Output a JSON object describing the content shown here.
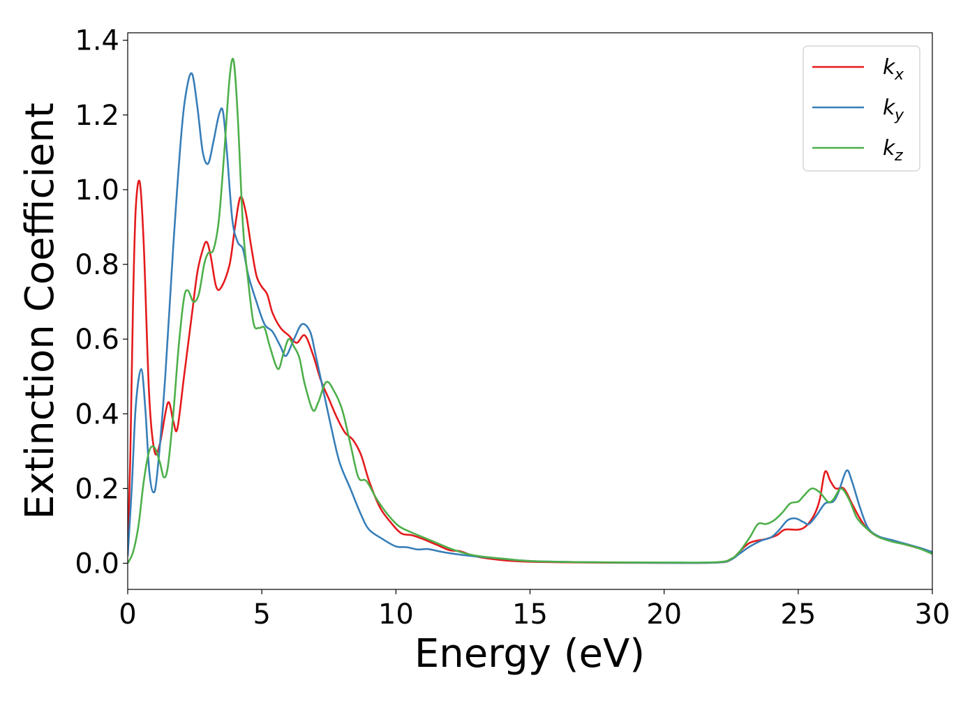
{
  "chart_data": {
    "type": "line",
    "xlabel": "Energy (eV)",
    "ylabel": "Extinction Coefficient",
    "xlim": [
      0,
      30
    ],
    "ylim": [
      -0.07,
      1.42
    ],
    "xticks": [
      0,
      5,
      10,
      15,
      20,
      25,
      30
    ],
    "xtick_labels": [
      "0",
      "5",
      "10",
      "15",
      "20",
      "25",
      "30"
    ],
    "yticks": [
      0.0,
      0.2,
      0.4,
      0.6,
      0.8,
      1.0,
      1.2,
      1.4
    ],
    "ytick_labels": [
      "0.0",
      "0.2",
      "0.4",
      "0.6",
      "0.8",
      "1.0",
      "1.2",
      "1.4"
    ],
    "grid": false,
    "legend_position": "top-right",
    "series": [
      {
        "name": "k_x",
        "label_base": "k",
        "label_sub": "x",
        "color": "#e41a1c",
        "points": [
          [
            0,
            0.02
          ],
          [
            0.1,
            0.3
          ],
          [
            0.2,
            0.7
          ],
          [
            0.3,
            0.95
          ],
          [
            0.45,
            1.02
          ],
          [
            0.6,
            0.85
          ],
          [
            0.8,
            0.45
          ],
          [
            1.0,
            0.3
          ],
          [
            1.2,
            0.32
          ],
          [
            1.5,
            0.43
          ],
          [
            1.7,
            0.38
          ],
          [
            1.85,
            0.36
          ],
          [
            2.1,
            0.5
          ],
          [
            2.4,
            0.67
          ],
          [
            2.6,
            0.78
          ],
          [
            2.8,
            0.84
          ],
          [
            2.95,
            0.86
          ],
          [
            3.1,
            0.82
          ],
          [
            3.3,
            0.74
          ],
          [
            3.5,
            0.74
          ],
          [
            3.8,
            0.8
          ],
          [
            4.0,
            0.9
          ],
          [
            4.2,
            0.98
          ],
          [
            4.4,
            0.94
          ],
          [
            4.6,
            0.85
          ],
          [
            4.8,
            0.77
          ],
          [
            5.0,
            0.74
          ],
          [
            5.2,
            0.72
          ],
          [
            5.4,
            0.67
          ],
          [
            5.7,
            0.63
          ],
          [
            6.0,
            0.61
          ],
          [
            6.3,
            0.59
          ],
          [
            6.6,
            0.61
          ],
          [
            6.9,
            0.56
          ],
          [
            7.2,
            0.49
          ],
          [
            7.5,
            0.44
          ],
          [
            7.8,
            0.39
          ],
          [
            8.1,
            0.35
          ],
          [
            8.4,
            0.33
          ],
          [
            8.7,
            0.29
          ],
          [
            9.0,
            0.22
          ],
          [
            9.4,
            0.15
          ],
          [
            9.8,
            0.11
          ],
          [
            10.2,
            0.08
          ],
          [
            10.6,
            0.075
          ],
          [
            11.0,
            0.065
          ],
          [
            11.5,
            0.05
          ],
          [
            12.0,
            0.035
          ],
          [
            12.4,
            0.032
          ],
          [
            13.0,
            0.018
          ],
          [
            14.0,
            0.008
          ],
          [
            15.0,
            0.004
          ],
          [
            17.0,
            0.002
          ],
          [
            20.0,
            0.001
          ],
          [
            22.0,
            0.002
          ],
          [
            22.5,
            0.01
          ],
          [
            22.8,
            0.03
          ],
          [
            23.2,
            0.055
          ],
          [
            23.8,
            0.065
          ],
          [
            24.2,
            0.075
          ],
          [
            24.5,
            0.09
          ],
          [
            25.0,
            0.09
          ],
          [
            25.3,
            0.1
          ],
          [
            25.6,
            0.13
          ],
          [
            25.8,
            0.17
          ],
          [
            26.0,
            0.245
          ],
          [
            26.2,
            0.22
          ],
          [
            26.4,
            0.2
          ],
          [
            26.7,
            0.2
          ],
          [
            27.0,
            0.16
          ],
          [
            27.3,
            0.12
          ],
          [
            27.6,
            0.09
          ],
          [
            28.0,
            0.07
          ],
          [
            28.5,
            0.06
          ],
          [
            29.0,
            0.05
          ],
          [
            29.5,
            0.04
          ],
          [
            30.0,
            0.03
          ]
        ]
      },
      {
        "name": "k_y",
        "label_base": "k",
        "label_sub": "y",
        "color": "#377eb8",
        "points": [
          [
            0,
            0.02
          ],
          [
            0.15,
            0.2
          ],
          [
            0.3,
            0.42
          ],
          [
            0.5,
            0.52
          ],
          [
            0.65,
            0.42
          ],
          [
            0.8,
            0.25
          ],
          [
            0.95,
            0.19
          ],
          [
            1.1,
            0.24
          ],
          [
            1.4,
            0.5
          ],
          [
            1.7,
            0.85
          ],
          [
            2.0,
            1.15
          ],
          [
            2.2,
            1.27
          ],
          [
            2.4,
            1.31
          ],
          [
            2.6,
            1.22
          ],
          [
            2.8,
            1.1
          ],
          [
            3.0,
            1.07
          ],
          [
            3.2,
            1.13
          ],
          [
            3.4,
            1.2
          ],
          [
            3.55,
            1.21
          ],
          [
            3.7,
            1.1
          ],
          [
            3.9,
            0.92
          ],
          [
            4.1,
            0.86
          ],
          [
            4.3,
            0.84
          ],
          [
            4.5,
            0.77
          ],
          [
            4.8,
            0.7
          ],
          [
            5.1,
            0.64
          ],
          [
            5.4,
            0.62
          ],
          [
            5.7,
            0.58
          ],
          [
            5.9,
            0.555
          ],
          [
            6.2,
            0.6
          ],
          [
            6.5,
            0.64
          ],
          [
            6.8,
            0.62
          ],
          [
            7.0,
            0.56
          ],
          [
            7.3,
            0.46
          ],
          [
            7.6,
            0.36
          ],
          [
            7.9,
            0.27
          ],
          [
            8.3,
            0.2
          ],
          [
            8.7,
            0.13
          ],
          [
            9.0,
            0.09
          ],
          [
            9.5,
            0.065
          ],
          [
            10.0,
            0.045
          ],
          [
            10.4,
            0.043
          ],
          [
            10.8,
            0.037
          ],
          [
            11.2,
            0.038
          ],
          [
            11.6,
            0.032
          ],
          [
            12.0,
            0.027
          ],
          [
            12.5,
            0.022
          ],
          [
            13.0,
            0.018
          ],
          [
            14.0,
            0.012
          ],
          [
            15.0,
            0.006
          ],
          [
            17.0,
            0.003
          ],
          [
            20.0,
            0.001
          ],
          [
            22.0,
            0.002
          ],
          [
            22.5,
            0.01
          ],
          [
            22.8,
            0.025
          ],
          [
            23.2,
            0.045
          ],
          [
            23.6,
            0.06
          ],
          [
            24.0,
            0.07
          ],
          [
            24.3,
            0.09
          ],
          [
            24.6,
            0.115
          ],
          [
            24.9,
            0.12
          ],
          [
            25.2,
            0.11
          ],
          [
            25.4,
            0.105
          ],
          [
            25.7,
            0.13
          ],
          [
            26.0,
            0.16
          ],
          [
            26.3,
            0.165
          ],
          [
            26.5,
            0.19
          ],
          [
            26.8,
            0.248
          ],
          [
            27.0,
            0.22
          ],
          [
            27.3,
            0.15
          ],
          [
            27.6,
            0.095
          ],
          [
            28.0,
            0.072
          ],
          [
            28.5,
            0.062
          ],
          [
            29.0,
            0.052
          ],
          [
            29.5,
            0.042
          ],
          [
            30.0,
            0.03
          ]
        ]
      },
      {
        "name": "k_z",
        "label_base": "k",
        "label_sub": "z",
        "color": "#4daf4a",
        "points": [
          [
            0,
            0.0
          ],
          [
            0.2,
            0.03
          ],
          [
            0.4,
            0.1
          ],
          [
            0.6,
            0.22
          ],
          [
            0.8,
            0.3
          ],
          [
            1.0,
            0.31
          ],
          [
            1.2,
            0.27
          ],
          [
            1.35,
            0.23
          ],
          [
            1.5,
            0.26
          ],
          [
            1.7,
            0.4
          ],
          [
            1.9,
            0.58
          ],
          [
            2.1,
            0.71
          ],
          [
            2.25,
            0.73
          ],
          [
            2.45,
            0.7
          ],
          [
            2.65,
            0.72
          ],
          [
            2.85,
            0.8
          ],
          [
            3.0,
            0.83
          ],
          [
            3.2,
            0.84
          ],
          [
            3.4,
            0.92
          ],
          [
            3.6,
            1.1
          ],
          [
            3.8,
            1.3
          ],
          [
            3.95,
            1.345
          ],
          [
            4.1,
            1.2
          ],
          [
            4.3,
            0.9
          ],
          [
            4.5,
            0.75
          ],
          [
            4.7,
            0.64
          ],
          [
            4.9,
            0.63
          ],
          [
            5.1,
            0.63
          ],
          [
            5.3,
            0.58
          ],
          [
            5.6,
            0.52
          ],
          [
            5.8,
            0.56
          ],
          [
            6.0,
            0.6
          ],
          [
            6.2,
            0.58
          ],
          [
            6.4,
            0.55
          ],
          [
            6.6,
            0.48
          ],
          [
            6.9,
            0.41
          ],
          [
            7.1,
            0.43
          ],
          [
            7.4,
            0.485
          ],
          [
            7.7,
            0.46
          ],
          [
            8.0,
            0.41
          ],
          [
            8.3,
            0.32
          ],
          [
            8.6,
            0.23
          ],
          [
            8.9,
            0.22
          ],
          [
            9.3,
            0.17
          ],
          [
            9.7,
            0.13
          ],
          [
            10.1,
            0.1
          ],
          [
            10.5,
            0.085
          ],
          [
            11.0,
            0.07
          ],
          [
            11.5,
            0.055
          ],
          [
            12.0,
            0.04
          ],
          [
            12.5,
            0.028
          ],
          [
            13.0,
            0.02
          ],
          [
            14.0,
            0.012
          ],
          [
            15.0,
            0.006
          ],
          [
            17.0,
            0.003
          ],
          [
            20.0,
            0.002
          ],
          [
            22.0,
            0.003
          ],
          [
            22.5,
            0.012
          ],
          [
            22.8,
            0.03
          ],
          [
            23.2,
            0.07
          ],
          [
            23.5,
            0.105
          ],
          [
            23.8,
            0.105
          ],
          [
            24.1,
            0.115
          ],
          [
            24.4,
            0.135
          ],
          [
            24.7,
            0.16
          ],
          [
            25.0,
            0.165
          ],
          [
            25.2,
            0.18
          ],
          [
            25.5,
            0.2
          ],
          [
            25.8,
            0.19
          ],
          [
            26.1,
            0.165
          ],
          [
            26.3,
            0.17
          ],
          [
            26.6,
            0.2
          ],
          [
            26.9,
            0.17
          ],
          [
            27.2,
            0.12
          ],
          [
            27.6,
            0.09
          ],
          [
            28.0,
            0.07
          ],
          [
            28.5,
            0.058
          ],
          [
            29.0,
            0.05
          ],
          [
            29.5,
            0.04
          ],
          [
            30.0,
            0.025
          ]
        ]
      }
    ]
  }
}
